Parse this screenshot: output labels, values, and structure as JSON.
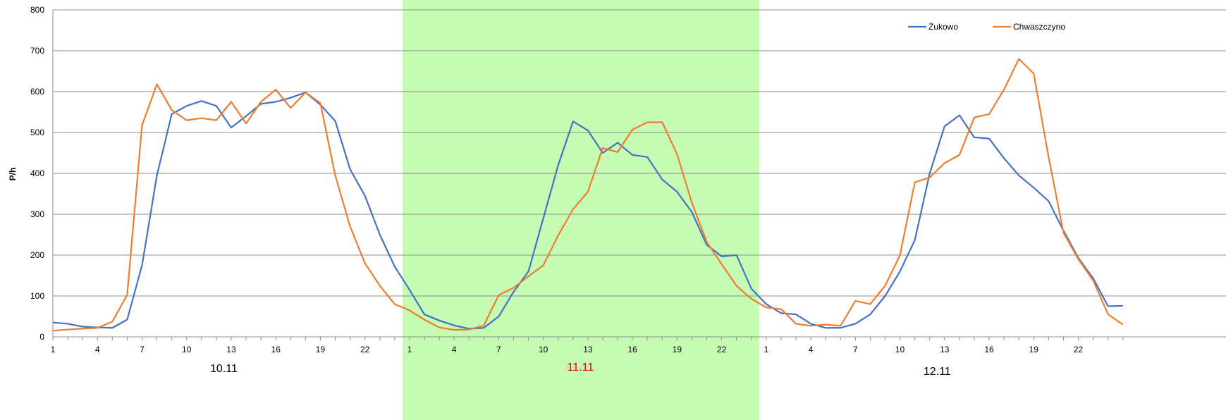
{
  "chart_data": {
    "type": "line",
    "ylabel": "P/h",
    "ylim": [
      0,
      800
    ],
    "yticks": [
      "0",
      "100",
      "200",
      "300",
      "400",
      "500",
      "600",
      "700",
      "800"
    ],
    "grid": true,
    "legend_position": "top-right",
    "x_tick_labels": [
      "1",
      "4",
      "7",
      "10",
      "13",
      "16",
      "19",
      "22",
      "1",
      "4",
      "7",
      "10",
      "13",
      "16",
      "19",
      "22",
      "1",
      "4",
      "7",
      "10",
      "13",
      "16",
      "19",
      "22"
    ],
    "day_labels": [
      {
        "text": "10.11",
        "color": "#000000"
      },
      {
        "text": "11.11",
        "color": "#e00000"
      },
      {
        "text": "12.11",
        "color": "#000000"
      }
    ],
    "highlight_day_index": 1,
    "highlight_color": "#c6fbb4",
    "series": [
      {
        "name": "Żukowo",
        "color": "#4472c4",
        "values": [
          35,
          32,
          25,
          23,
          22,
          42,
          175,
          395,
          545,
          565,
          577,
          565,
          512,
          540,
          570,
          575,
          585,
          598,
          568,
          528,
          410,
          345,
          250,
          172,
          115,
          55,
          40,
          28,
          20,
          22,
          50,
          110,
          160,
          290,
          420,
          527,
          505,
          450,
          475,
          445,
          440,
          385,
          355,
          305,
          225,
          197,
          200,
          118,
          80,
          58,
          55,
          32,
          22,
          22,
          32,
          55,
          100,
          160,
          237,
          400,
          515,
          542,
          488,
          485,
          437,
          395,
          365,
          332,
          260,
          193,
          143,
          75,
          76
        ]
      },
      {
        "name": "Chwaszczyno",
        "color": "#ed7d31",
        "values": [
          15,
          18,
          20,
          22,
          37,
          103,
          518,
          618,
          555,
          530,
          535,
          530,
          575,
          522,
          575,
          605,
          560,
          598,
          572,
          395,
          270,
          180,
          125,
          80,
          65,
          42,
          23,
          17,
          18,
          28,
          102,
          120,
          148,
          175,
          248,
          312,
          355,
          462,
          452,
          507,
          525,
          525,
          447,
          328,
          232,
          178,
          125,
          93,
          72,
          68,
          32,
          27,
          30,
          27,
          88,
          80,
          125,
          200,
          378,
          390,
          425,
          445,
          537,
          545,
          605,
          680,
          644,
          440,
          255,
          190,
          138,
          55,
          30
        ]
      }
    ]
  }
}
